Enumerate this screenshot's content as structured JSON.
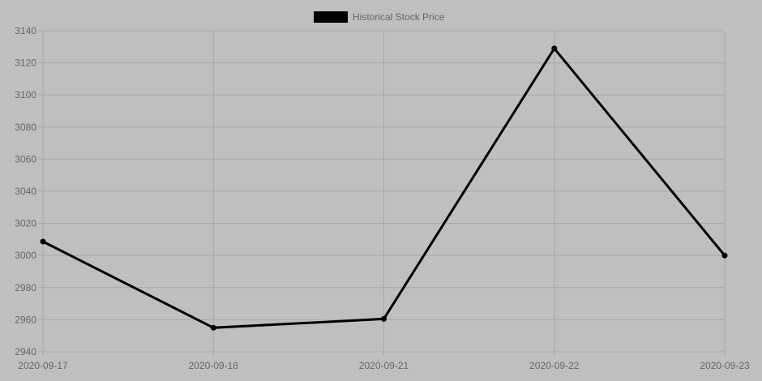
{
  "chart_data": {
    "type": "line",
    "categories": [
      "2020-09-17",
      "2020-09-18",
      "2020-09-21",
      "2020-09-22",
      "2020-09-23"
    ],
    "series": [
      {
        "name": "Historical Stock Price",
        "values": [
          3008.7,
          2955.0,
          2960.5,
          3129.0,
          3000.0
        ],
        "color": "#000000"
      }
    ],
    "ylim": [
      2940,
      3140
    ],
    "yticks": [
      2940,
      2960,
      2980,
      3000,
      3020,
      3040,
      3060,
      3080,
      3100,
      3120,
      3140
    ],
    "grid": true,
    "legend": "top-center",
    "colors": {
      "background": "#bfbfbf",
      "grid": "#a8a8a8",
      "text": "#666666"
    }
  }
}
